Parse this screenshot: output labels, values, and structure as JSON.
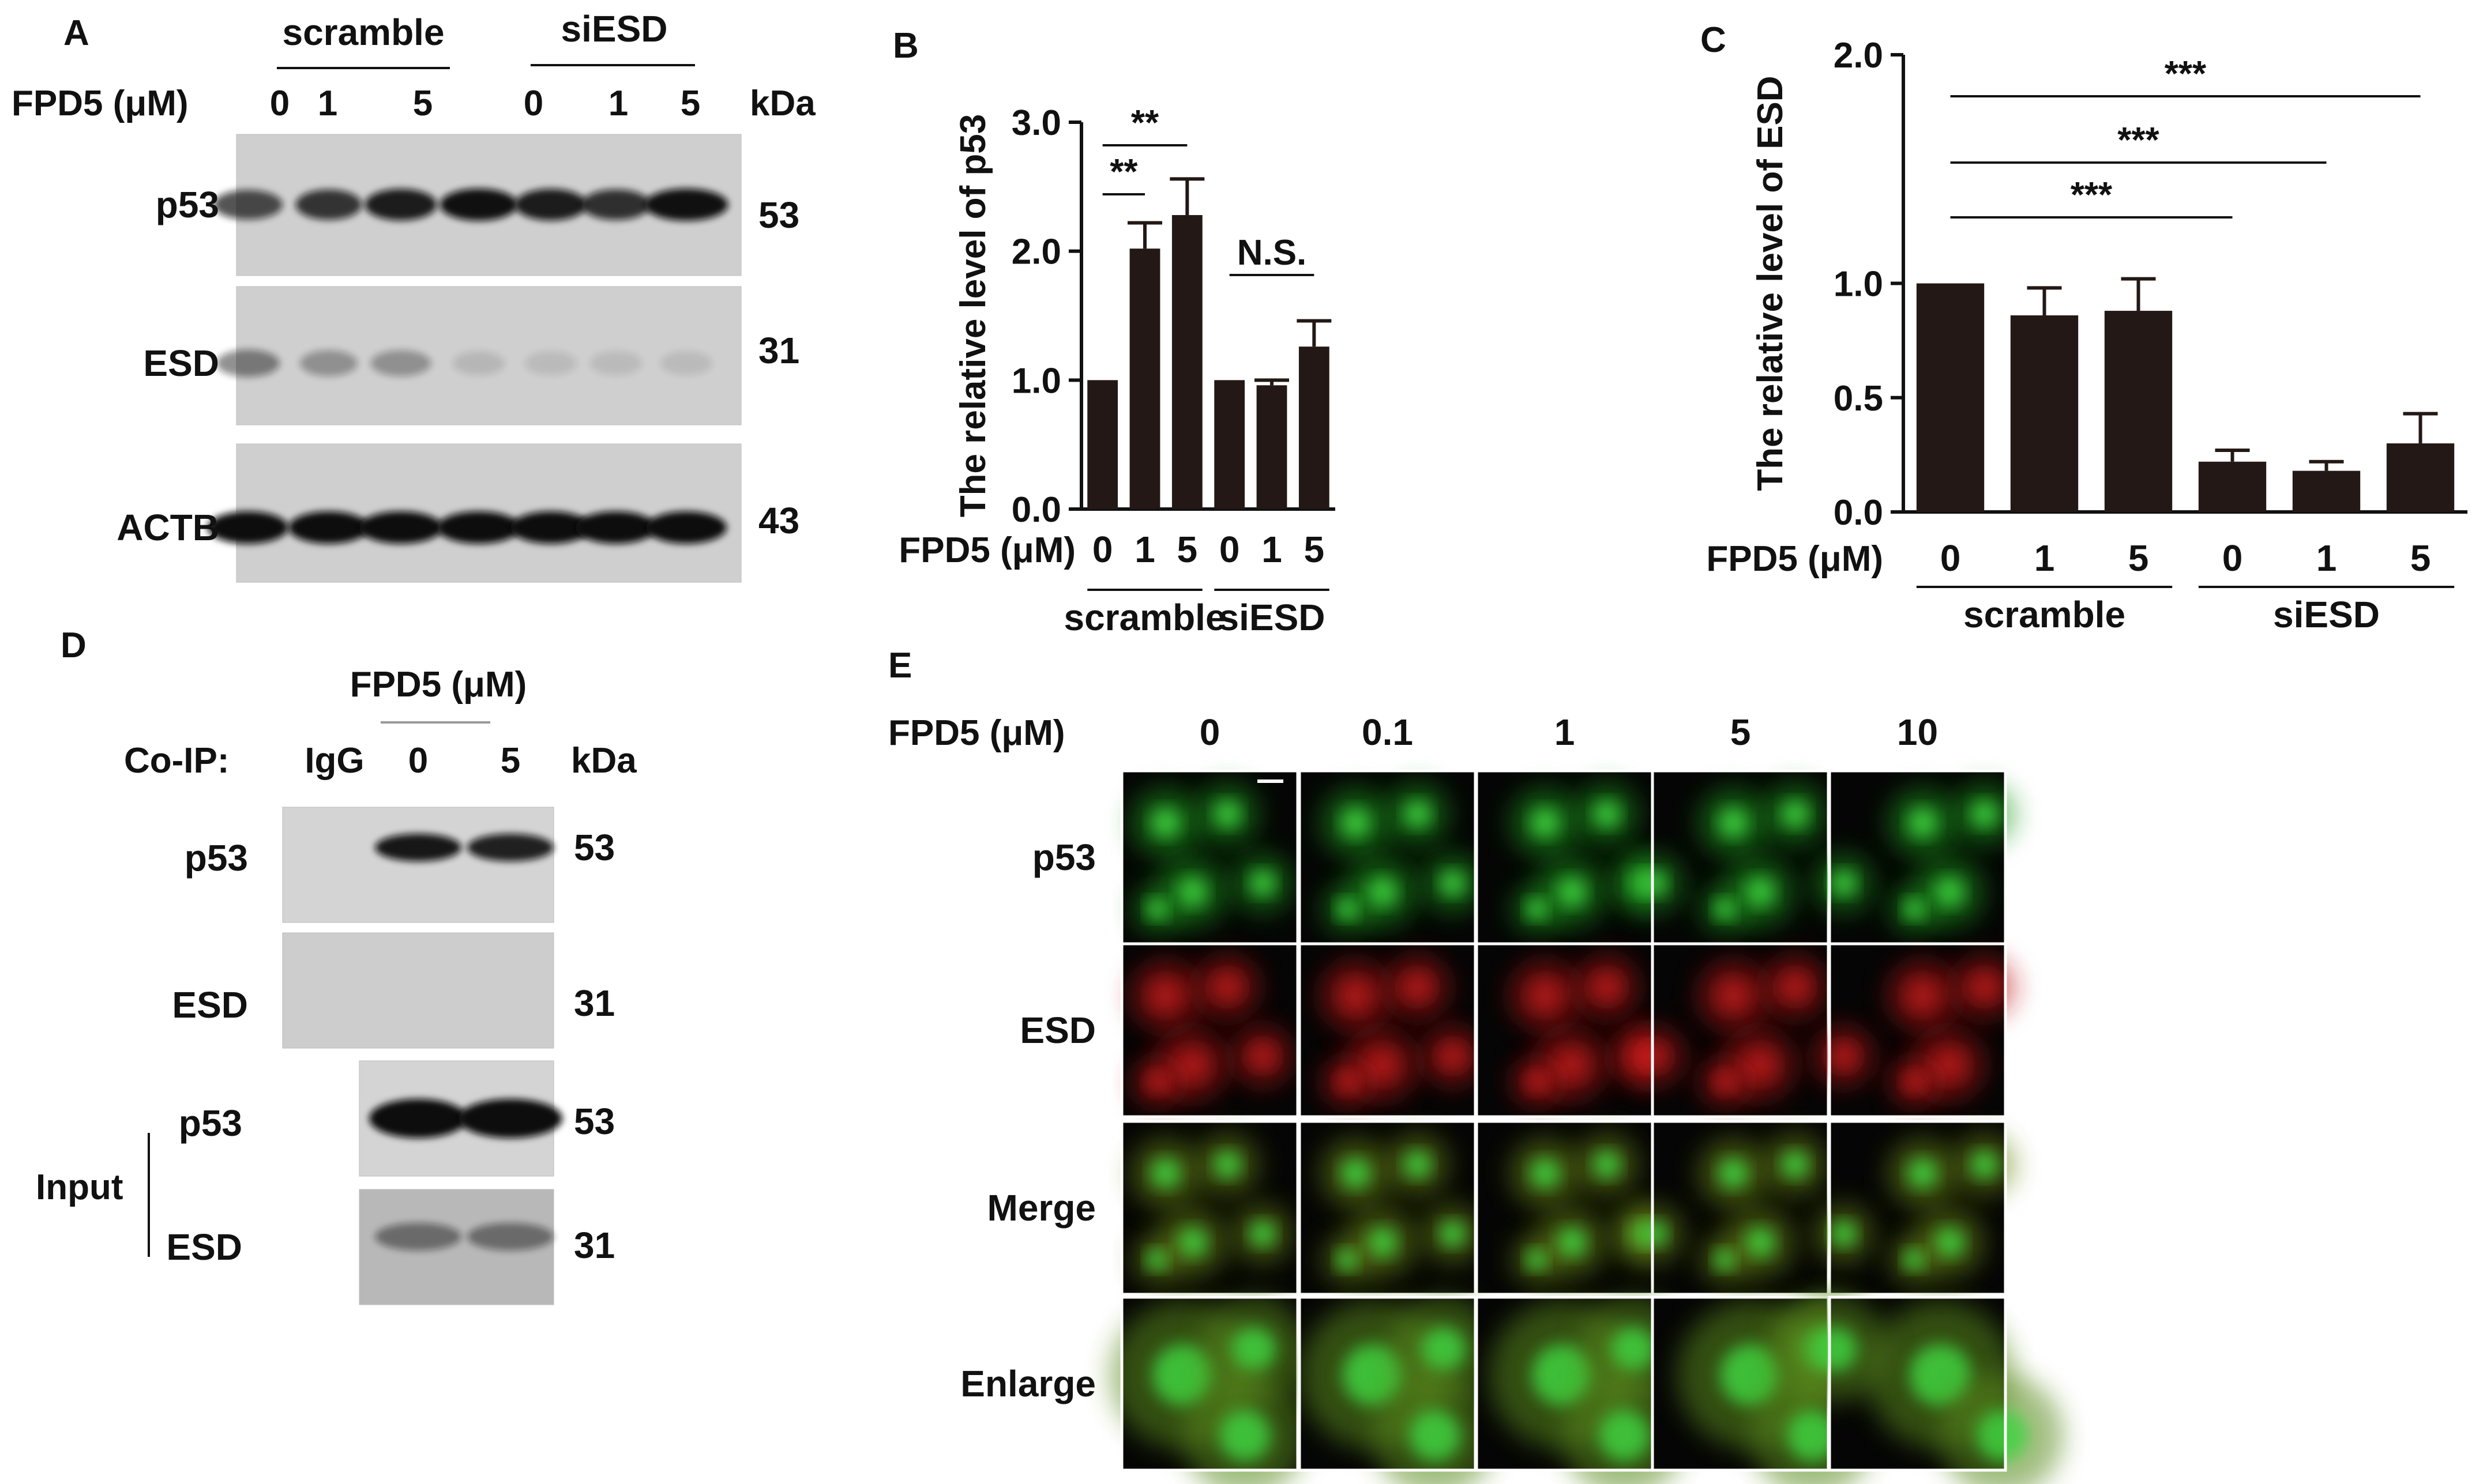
{
  "panelA": {
    "letter": "A",
    "groups": [
      "scramble",
      "siESD"
    ],
    "dose_label": "FPD5 (μM)",
    "doses": [
      "0",
      "1",
      "5",
      "0",
      "1",
      "5"
    ],
    "kda_label": "kDa",
    "blots": [
      {
        "protein": "p53",
        "kda": "53"
      },
      {
        "protein": "ESD",
        "kda": "31"
      },
      {
        "protein": "ACTB",
        "kda": "43"
      }
    ]
  },
  "panelD": {
    "letter": "D",
    "dose_label": "FPD5 (μM)",
    "coip_label": "Co-IP:",
    "lanes": [
      "IgG",
      "0",
      "5"
    ],
    "kda_label": "kDa",
    "ip_blots": [
      {
        "protein": "p53",
        "kda": "53"
      },
      {
        "protein": "ESD",
        "kda": "31"
      }
    ],
    "input_label": "Input",
    "input_blots": [
      {
        "protein": "p53",
        "kda": "53"
      },
      {
        "protein": "ESD",
        "kda": "31"
      }
    ]
  },
  "panelE": {
    "letter": "E",
    "dose_label": "FPD5 (μM)",
    "doses": [
      "0",
      "0.1",
      "1",
      "5",
      "10"
    ],
    "rows": [
      "p53",
      "ESD",
      "Merge",
      "Enlarge"
    ],
    "colors": {
      "p53": "#1e9a1e",
      "ESD": "#c01818",
      "Merge": "#6a8a18",
      "Enlarge": "#5a8a1a"
    }
  },
  "chart_data": [
    {
      "type": "bar",
      "panel": "B",
      "ylabel": "The relative level of p53",
      "xlabel": "FPD5 (μM)",
      "categories": [
        "0",
        "1",
        "5",
        "0",
        "1",
        "5"
      ],
      "groups": [
        {
          "label": "scramble",
          "span": [
            0,
            2
          ]
        },
        {
          "label": "siESD",
          "span": [
            3,
            5
          ]
        }
      ],
      "values": [
        1.0,
        2.02,
        2.28,
        1.0,
        0.96,
        1.26
      ],
      "errors": [
        0,
        0.2,
        0.28,
        0,
        0.04,
        0.2
      ],
      "ylim": [
        0,
        3.0
      ],
      "yticks": [
        "0.0",
        "1.0",
        "2.0",
        "3.0"
      ],
      "bar_color": "#231815",
      "annotations": [
        {
          "from": 0,
          "to": 1,
          "text": "**"
        },
        {
          "from": 0,
          "to": 2,
          "text": "**"
        },
        {
          "from": 3,
          "to": 5,
          "text": "N.S."
        }
      ]
    },
    {
      "type": "bar",
      "panel": "C",
      "ylabel": "The relative level of ESD",
      "xlabel": "FPD5 (μM)",
      "categories": [
        "0",
        "1",
        "5",
        "0",
        "1",
        "5"
      ],
      "groups": [
        {
          "label": "scramble",
          "span": [
            0,
            2
          ]
        },
        {
          "label": "siESD",
          "span": [
            3,
            5
          ]
        }
      ],
      "values": [
        1.0,
        0.86,
        0.88,
        0.22,
        0.18,
        0.3
      ],
      "errors": [
        0,
        0.12,
        0.14,
        0.05,
        0.04,
        0.13
      ],
      "ylim": [
        0,
        2.0
      ],
      "yticks": [
        "0.0",
        "0.5",
        "1.0",
        "2.0"
      ],
      "bar_color": "#231815",
      "annotations": [
        {
          "from": 0,
          "to": 3,
          "text": "***"
        },
        {
          "from": 0,
          "to": 4,
          "text": "***"
        },
        {
          "from": 0,
          "to": 5,
          "text": "***"
        }
      ]
    }
  ]
}
